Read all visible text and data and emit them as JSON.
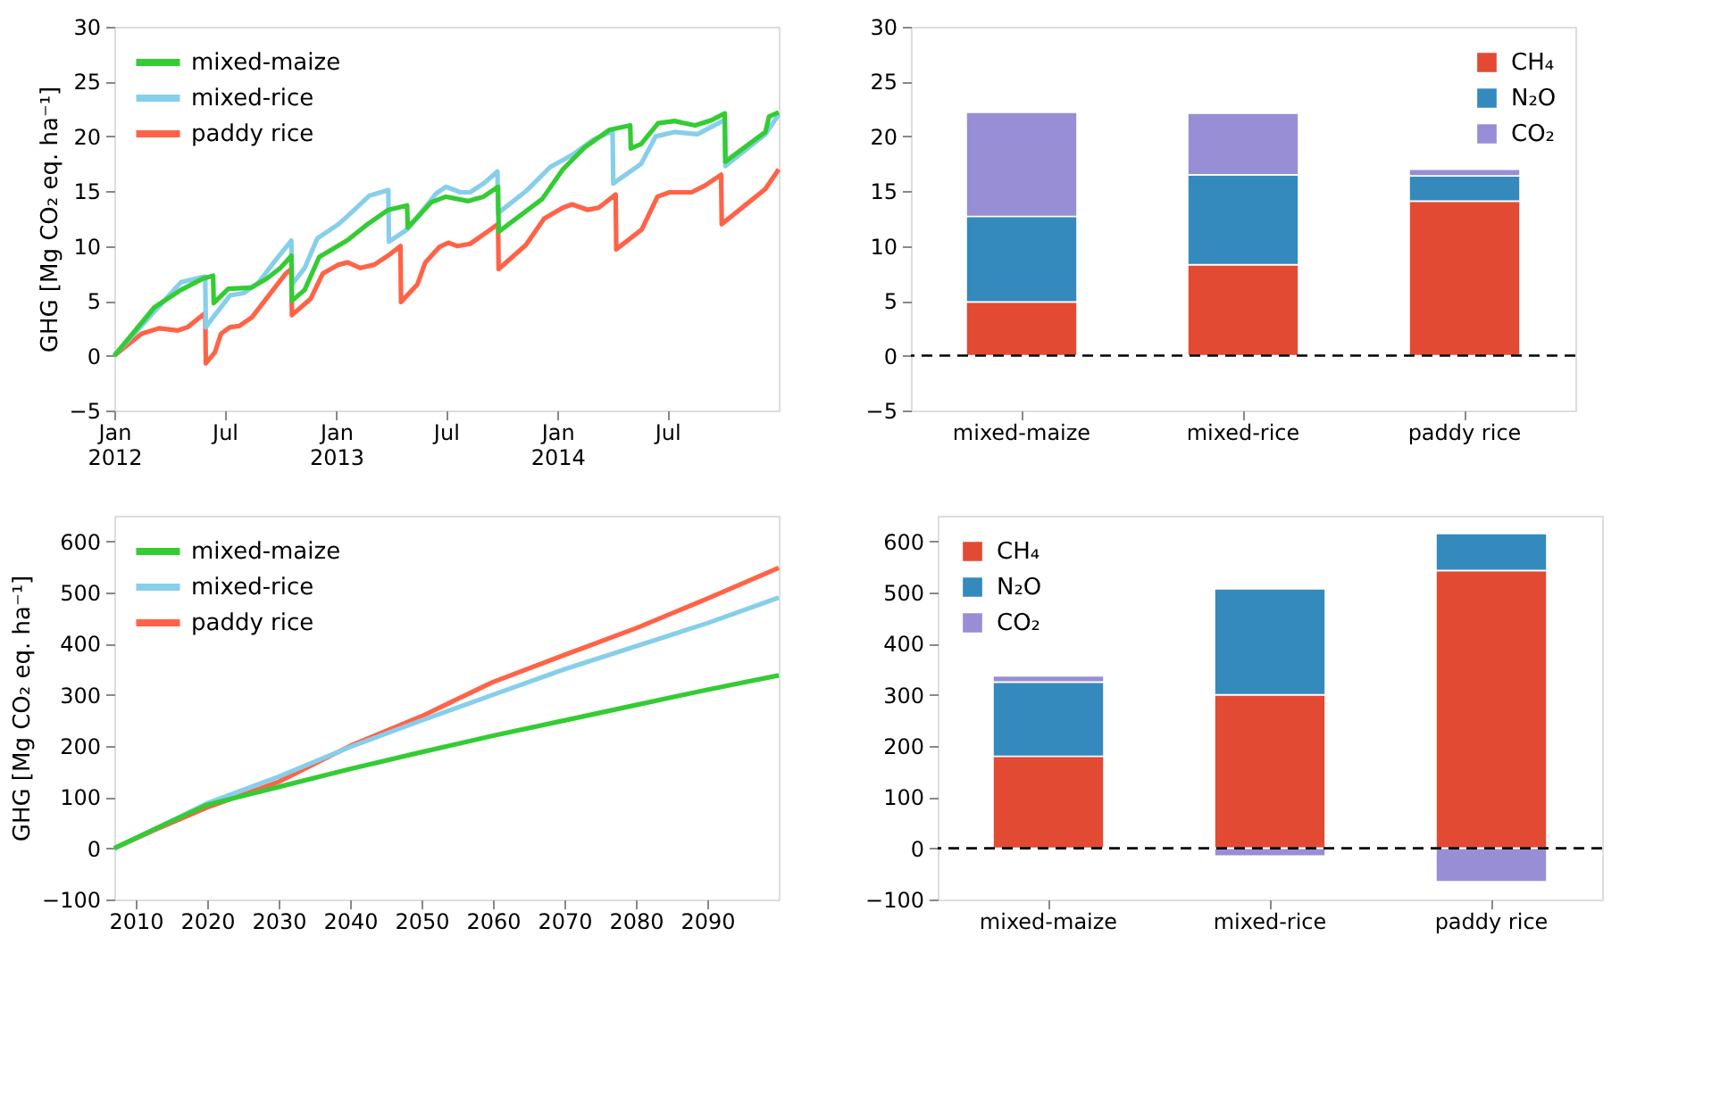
{
  "chart_data": [
    {
      "type": "line",
      "ylabel": "GHG [Mg CO₂ eq. ha⁻¹]",
      "xlim": [
        "2012-01-01",
        "2015-01-01"
      ],
      "ylim": [
        -5,
        30
      ],
      "yticks": [
        -5,
        0,
        5,
        10,
        15,
        20,
        25,
        30
      ],
      "xticks": [
        {
          "value": "2012-01-01",
          "label": "Jan\n2012"
        },
        {
          "value": "2012-07-01",
          "label": "Jul"
        },
        {
          "value": "2013-01-01",
          "label": "Jan\n2013"
        },
        {
          "value": "2013-07-01",
          "label": "Jul"
        },
        {
          "value": "2014-01-01",
          "label": "Jan\n2014"
        },
        {
          "value": "2014-07-01",
          "label": "Jul"
        }
      ],
      "legend": "top left",
      "grid": false,
      "line_style": "solid",
      "marker": "none",
      "series": [
        {
          "name": "mixed-maize",
          "color": "#33cc33",
          "x": [
            "2012-01-01",
            "2012-03-07",
            "2012-04-20",
            "2012-05-25",
            "2012-06-12",
            "2012-06-13",
            "2012-07-07",
            "2012-08-13",
            "2012-09-08",
            "2012-10-01",
            "2012-10-19",
            "2012-10-20",
            "2012-11-10",
            "2012-12-04",
            "2013-01-19",
            "2013-02-22",
            "2013-03-28",
            "2013-04-28",
            "2013-04-29",
            "2013-05-13",
            "2013-06-07",
            "2013-07-01",
            "2013-08-07",
            "2013-09-01",
            "2013-09-25",
            "2013-09-26",
            "2013-12-07",
            "2014-01-10",
            "2014-02-15",
            "2014-03-28",
            "2014-05-01",
            "2014-05-02",
            "2014-05-19",
            "2014-06-16",
            "2014-07-13",
            "2014-08-16",
            "2014-09-13",
            "2014-10-04",
            "2014-10-05",
            "2014-12-10",
            "2014-12-16",
            "2015-01-01"
          ],
          "values": [
            0,
            4.4,
            6.0,
            7.0,
            7.3,
            4.8,
            6.1,
            6.2,
            7.0,
            8.0,
            9.1,
            5.0,
            6.0,
            9.0,
            10.5,
            12.0,
            13.3,
            13.7,
            11.7,
            12.5,
            14.0,
            14.5,
            14.1,
            14.5,
            15.4,
            11.3,
            14.3,
            17.0,
            19.0,
            20.6,
            21.0,
            18.9,
            19.3,
            21.2,
            21.4,
            21.0,
            21.5,
            22.1,
            17.7,
            20.4,
            21.8,
            22.2
          ]
        },
        {
          "name": "mixed-rice",
          "color": "#87ceeb",
          "x": [
            "2012-01-01",
            "2012-03-15",
            "2012-04-20",
            "2012-05-28",
            "2012-05-30",
            "2012-05-31",
            "2012-06-12",
            "2012-07-10",
            "2012-08-01",
            "2012-08-25",
            "2012-09-20",
            "2012-10-19",
            "2012-10-20",
            "2012-11-10",
            "2012-12-01",
            "2013-01-05",
            "2013-01-25",
            "2013-02-25",
            "2013-03-28",
            "2013-03-29",
            "2013-04-28",
            "2013-05-13",
            "2013-06-15",
            "2013-07-01",
            "2013-07-25",
            "2013-08-10",
            "2013-09-01",
            "2013-09-24",
            "2013-09-25",
            "2013-11-10",
            "2013-12-20",
            "2014-01-25",
            "2014-03-01",
            "2014-03-25",
            "2014-04-02",
            "2014-04-03",
            "2014-05-19",
            "2014-06-12",
            "2014-07-13",
            "2014-08-20",
            "2014-10-04",
            "2014-10-05",
            "2014-12-10",
            "2015-01-01"
          ],
          "values": [
            0,
            4.5,
            6.7,
            7.2,
            7.2,
            2.6,
            3.5,
            5.5,
            5.7,
            6.6,
            8.5,
            10.5,
            6.5,
            8.0,
            10.7,
            12.0,
            13.0,
            14.6,
            15.1,
            10.4,
            11.5,
            12.5,
            14.8,
            15.4,
            14.9,
            14.9,
            15.7,
            16.8,
            13.0,
            15.0,
            17.2,
            18.3,
            19.7,
            20.3,
            20.4,
            15.7,
            17.5,
            20.0,
            20.4,
            20.2,
            21.5,
            17.3,
            20.2,
            22.0
          ]
        },
        {
          "name": "paddy rice",
          "color": "#ff6347",
          "x": [
            "2012-01-01",
            "2012-02-15",
            "2012-03-15",
            "2012-04-15",
            "2012-05-01",
            "2012-05-30",
            "2012-05-31",
            "2012-06-15",
            "2012-06-25",
            "2012-07-10",
            "2012-07-25",
            "2012-08-15",
            "2012-09-05",
            "2012-10-10",
            "2012-10-19",
            "2012-10-20",
            "2012-11-20",
            "2012-12-10",
            "2013-01-05",
            "2013-01-20",
            "2013-02-10",
            "2013-03-05",
            "2013-04-01",
            "2013-04-17",
            "2013-04-18",
            "2013-05-15",
            "2013-05-28",
            "2013-06-20",
            "2013-07-05",
            "2013-07-20",
            "2013-08-10",
            "2013-09-05",
            "2013-09-25",
            "2013-09-26",
            "2013-11-10",
            "2013-12-10",
            "2014-01-10",
            "2014-01-25",
            "2014-02-20",
            "2014-03-10",
            "2014-04-07",
            "2014-04-08",
            "2014-05-20",
            "2014-06-15",
            "2014-07-05",
            "2014-08-10",
            "2014-09-01",
            "2014-09-28",
            "2014-09-29",
            "2014-12-10",
            "2015-01-01"
          ],
          "values": [
            0,
            2.0,
            2.5,
            2.3,
            2.6,
            3.9,
            -0.7,
            0.3,
            2.0,
            2.6,
            2.7,
            3.5,
            5.0,
            7.5,
            7.9,
            3.7,
            5.2,
            7.5,
            8.3,
            8.5,
            8.0,
            8.3,
            9.3,
            10.0,
            4.9,
            6.5,
            8.5,
            9.9,
            10.3,
            10.0,
            10.2,
            11.2,
            12.0,
            7.9,
            10.1,
            12.5,
            13.5,
            13.8,
            13.3,
            13.5,
            14.7,
            9.7,
            11.5,
            14.5,
            14.9,
            14.9,
            15.5,
            16.5,
            12.0,
            15.2,
            17.0
          ]
        }
      ]
    },
    {
      "type": "bar",
      "stacked": true,
      "categories": [
        "mixed-maize",
        "mixed-rice",
        "paddy rice"
      ],
      "ylim": [
        -5,
        30
      ],
      "yticks": [
        -5,
        0,
        5,
        10,
        15,
        20,
        25,
        30
      ],
      "legend": "top right",
      "grid": false,
      "ref_lines": [
        {
          "axis": "y",
          "value": 0,
          "color": "#000000",
          "line_style": "dashed"
        }
      ],
      "series": [
        {
          "name": "CH₄",
          "color": "#e24a33",
          "values": [
            4.9,
            8.3,
            14.1
          ]
        },
        {
          "name": "N₂O",
          "color": "#348abd",
          "values": [
            7.8,
            8.2,
            2.3
          ]
        },
        {
          "name": "CO₂",
          "color": "#988ed5",
          "values": [
            9.5,
            5.6,
            0.6
          ]
        }
      ]
    },
    {
      "type": "line",
      "ylabel": "GHG [Mg CO₂ eq. ha⁻¹]",
      "xlim": [
        2007,
        2100
      ],
      "ylim": [
        -100,
        650
      ],
      "yticks": [
        -100,
        0,
        100,
        200,
        300,
        400,
        500,
        600
      ],
      "xticks": [
        2010,
        2020,
        2030,
        2040,
        2050,
        2060,
        2070,
        2080,
        2090
      ],
      "legend": "top left",
      "grid": false,
      "line_style": "solid",
      "marker": "none",
      "series": [
        {
          "name": "mixed-maize",
          "color": "#33cc33",
          "x": [
            2007,
            2013,
            2020,
            2030,
            2040,
            2050,
            2060,
            2070,
            2080,
            2090,
            2100
          ],
          "values": [
            0,
            40,
            85,
            120,
            155,
            188,
            220,
            250,
            280,
            310,
            338
          ]
        },
        {
          "name": "mixed-rice",
          "color": "#87ceeb",
          "x": [
            2007,
            2013,
            2020,
            2030,
            2040,
            2050,
            2060,
            2070,
            2080,
            2090,
            2100
          ],
          "values": [
            0,
            40,
            88,
            140,
            198,
            250,
            300,
            350,
            395,
            440,
            490
          ]
        },
        {
          "name": "paddy rice",
          "color": "#ff6347",
          "x": [
            2007,
            2013,
            2020,
            2030,
            2040,
            2050,
            2060,
            2070,
            2080,
            2090,
            2100
          ],
          "values": [
            0,
            38,
            80,
            130,
            200,
            258,
            325,
            378,
            430,
            488,
            548
          ]
        }
      ]
    },
    {
      "type": "bar",
      "stacked": true,
      "categories": [
        "mixed-maize",
        "mixed-rice",
        "paddy rice"
      ],
      "ylim": [
        -100,
        650
      ],
      "yticks": [
        -100,
        0,
        100,
        200,
        300,
        400,
        500,
        600
      ],
      "legend": "top left",
      "grid": false,
      "ref_lines": [
        {
          "axis": "y",
          "value": 0,
          "color": "#000000",
          "line_style": "dashed"
        }
      ],
      "series": [
        {
          "name": "CH₄",
          "color": "#e24a33",
          "values": [
            180,
            300,
            543
          ]
        },
        {
          "name": "N₂O",
          "color": "#348abd",
          "values": [
            145,
            207,
            72
          ]
        },
        {
          "name": "CO₂",
          "color": "#988ed5",
          "values": [
            12,
            -15,
            -65
          ]
        }
      ]
    }
  ]
}
